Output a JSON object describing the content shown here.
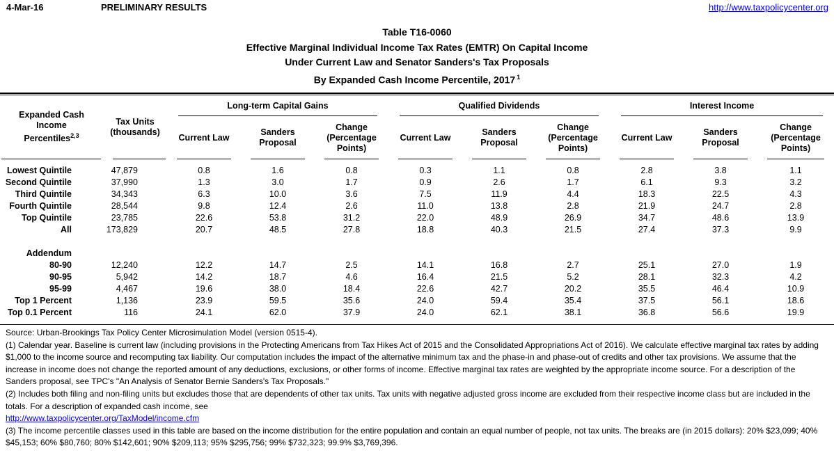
{
  "colors": {
    "text": "#000000",
    "link": "#0000EE",
    "background": "#FFFFFF",
    "rule": "#000000"
  },
  "header": {
    "date": "4-Mar-16",
    "status": "PRELIMINARY RESULTS",
    "site_link": "http://www.taxpolicycenter.org"
  },
  "title": {
    "line1": "Table T16-0060",
    "line2": "Effective Marginal Individual Income Tax Rates (EMTR) On Capital Income",
    "line3": "Under Current Law and Senator Sanders's Tax Proposals",
    "line4": "By Expanded Cash Income Percentile, 2017",
    "line4_sup": "1"
  },
  "table": {
    "row_header": {
      "line1": "Expanded Cash Income",
      "line2": "Percentiles",
      "line2_sup": "2,3"
    },
    "tax_units_header": {
      "lines": [
        "Tax Units",
        "(thousands)"
      ]
    },
    "groups": [
      {
        "label": "Long-term Capital Gains"
      },
      {
        "label": "Qualified Dividends"
      },
      {
        "label": "Interest Income"
      }
    ],
    "sub_columns": [
      {
        "lines": [
          "Current Law"
        ]
      },
      {
        "lines": [
          "Sanders",
          "Proposal"
        ]
      },
      {
        "lines": [
          "Change",
          "(Percentage",
          "Points)"
        ]
      }
    ],
    "rows": [
      {
        "label": "Lowest Quintile",
        "tax_units": "47,879",
        "values": [
          "0.8",
          "1.6",
          "0.8",
          "0.3",
          "1.1",
          "0.8",
          "2.8",
          "3.8",
          "1.1"
        ]
      },
      {
        "label": "Second Quintile",
        "tax_units": "37,990",
        "values": [
          "1.3",
          "3.0",
          "1.7",
          "0.9",
          "2.6",
          "1.7",
          "6.1",
          "9.3",
          "3.2"
        ]
      },
      {
        "label": "Third Quintile",
        "tax_units": "34,343",
        "values": [
          "6.3",
          "10.0",
          "3.6",
          "7.5",
          "11.9",
          "4.4",
          "18.3",
          "22.5",
          "4.3"
        ]
      },
      {
        "label": "Fourth Quintile",
        "tax_units": "28,544",
        "values": [
          "9.8",
          "12.4",
          "2.6",
          "11.0",
          "13.8",
          "2.8",
          "21.9",
          "24.7",
          "2.8"
        ]
      },
      {
        "label": "Top Quintile",
        "tax_units": "23,785",
        "values": [
          "22.6",
          "53.8",
          "31.2",
          "22.0",
          "48.9",
          "26.9",
          "34.7",
          "48.6",
          "13.9"
        ]
      },
      {
        "label": "All",
        "tax_units": "173,829",
        "values": [
          "20.7",
          "48.5",
          "27.8",
          "18.8",
          "40.3",
          "21.5",
          "27.4",
          "37.3",
          "9.9"
        ]
      }
    ],
    "addendum": {
      "label": "Addendum",
      "rows": [
        {
          "label": "80-90",
          "tax_units": "12,240",
          "values": [
            "12.2",
            "14.7",
            "2.5",
            "14.1",
            "16.8",
            "2.7",
            "25.1",
            "27.0",
            "1.9"
          ]
        },
        {
          "label": "90-95",
          "tax_units": "5,942",
          "values": [
            "14.2",
            "18.7",
            "4.6",
            "16.4",
            "21.5",
            "5.2",
            "28.1",
            "32.3",
            "4.2"
          ]
        },
        {
          "label": "95-99",
          "tax_units": "4,467",
          "values": [
            "19.6",
            "38.0",
            "18.4",
            "22.6",
            "42.7",
            "20.2",
            "35.5",
            "46.4",
            "10.9"
          ]
        },
        {
          "label": "Top 1 Percent",
          "tax_units": "1,136",
          "values": [
            "23.9",
            "59.5",
            "35.6",
            "24.0",
            "59.4",
            "35.4",
            "37.5",
            "56.1",
            "18.6"
          ]
        },
        {
          "label": "Top 0.1 Percent",
          "tax_units": "116",
          "values": [
            "24.1",
            "62.0",
            "37.9",
            "24.0",
            "62.1",
            "38.1",
            "36.8",
            "56.6",
            "19.9"
          ]
        }
      ]
    }
  },
  "footnotes": {
    "source": "Source: Urban-Brookings Tax Policy Center Microsimulation Model (version 0515-4).",
    "note1": "(1) Calendar year. Baseline is current law (including provisions in the Protecting Americans from Tax Hikes Act of 2015 and the Consolidated Appropriations Act of 2016). We calculate effective marginal tax rates by adding $1,000 to the income source and recomputing tax liability. Our computation includes the impact of the alternative minimum tax and the phase-in and phase-out of credits and other tax provisions. We assume that the increase in income does not change the reported amount of any deductions, exclusions, or other forms of income. Effective marginal tax rates are weighted by the appropriate income source. For a description of the Sanders proposal, see TPC's \"An Analysis of Senator Bernie Sanders's Tax Proposals.\"",
    "note2": "(2) Includes both filing and non-filing units but excludes those that are dependents of other tax units. Tax units with negative adjusted gross income are excluded from their respective income class but are included in the totals. For a description of expanded cash income, see",
    "note2_link": "http://www.taxpolicycenter.org/TaxModel/income.cfm",
    "note3": "(3) The income percentile classes used in this table are based on the income distribution for the entire population and contain an equal number of people, not tax units. The breaks are (in 2015 dollars): 20% $23,099; 40% $45,153; 60% $80,760; 80% $142,601; 90% $209,113; 95% $295,756; 99% $732,323; 99.9% $3,769,396."
  }
}
